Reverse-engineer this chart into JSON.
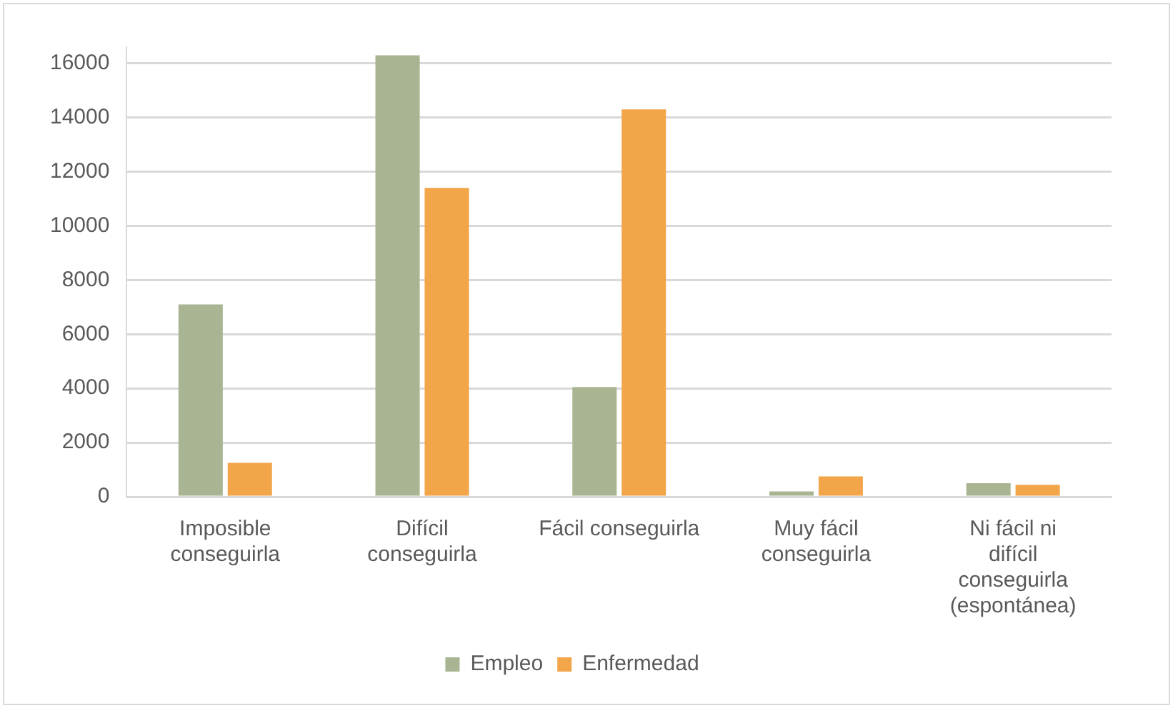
{
  "chart_data": {
    "type": "bar",
    "categories": [
      "Imposible conseguirla",
      "Difícil conseguirla",
      "Fácil conseguirla",
      "Muy fácil conseguirla",
      "Ni fácil ni difícil conseguirla (espontánea)"
    ],
    "series": [
      {
        "name": "Empleo",
        "color": "#a9b592",
        "values": [
          7100,
          16300,
          4050,
          200,
          500
        ]
      },
      {
        "name": "Enfermedad",
        "color": "#f2a549",
        "values": [
          1250,
          11400,
          14300,
          750,
          440
        ]
      }
    ],
    "ylim": [
      0,
      16600
    ],
    "yticks": [
      0,
      2000,
      4000,
      6000,
      8000,
      10000,
      12000,
      14000,
      16000
    ],
    "grid": "y",
    "legend": "bottom"
  }
}
